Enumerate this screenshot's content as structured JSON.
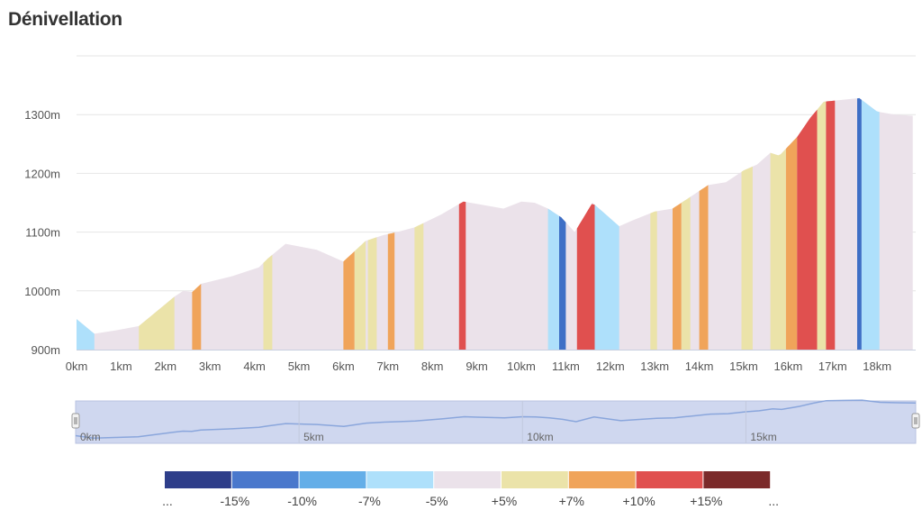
{
  "title": "Dénivellation",
  "chart_data": {
    "type": "area",
    "title": "Dénivellation",
    "x_unit": "km",
    "y_unit": "m",
    "xlim": [
      0,
      18.8
    ],
    "ylim": [
      900,
      1400
    ],
    "y_ticks": [
      "900m",
      "1000m",
      "1100m",
      "1200m",
      "1300m"
    ],
    "x_ticks": [
      "0km",
      "1km",
      "2km",
      "3km",
      "4km",
      "5km",
      "6km",
      "7km",
      "8km",
      "9km",
      "10km",
      "11km",
      "12km",
      "13km",
      "14km",
      "15km",
      "16km",
      "17km",
      "18km"
    ],
    "profile_x": [
      0,
      0.4,
      0.9,
      1.4,
      2.2,
      2.4,
      2.6,
      2.8,
      3.5,
      4.1,
      4.3,
      4.7,
      5.4,
      6.0,
      6.5,
      6.9,
      7.2,
      7.6,
      8.2,
      8.7,
      9.0,
      9.6,
      10.0,
      10.3,
      10.6,
      10.9,
      11.2,
      11.6,
      12.2,
      12.5,
      13.0,
      13.4,
      13.7,
      14.2,
      14.6,
      15.0,
      15.3,
      15.6,
      15.8,
      16.2,
      16.5,
      16.8,
      17.2,
      17.6,
      18.0,
      18.4,
      18.8
    ],
    "profile_y": [
      952,
      927,
      933,
      940,
      990,
      1000,
      998,
      1012,
      1025,
      1040,
      1055,
      1080,
      1070,
      1050,
      1085,
      1095,
      1100,
      1108,
      1130,
      1152,
      1148,
      1140,
      1152,
      1150,
      1140,
      1125,
      1100,
      1150,
      1110,
      1120,
      1135,
      1140,
      1155,
      1180,
      1185,
      1205,
      1215,
      1235,
      1230,
      1262,
      1295,
      1322,
      1325,
      1328,
      1305,
      1300,
      1298
    ],
    "grade_bands": [
      {
        "start": 0.0,
        "end": 0.4,
        "grade": "-7%",
        "color": "#aee0fb"
      },
      {
        "start": 1.4,
        "end": 2.2,
        "grade": "+5%",
        "color": "#ebe3a9"
      },
      {
        "start": 2.6,
        "end": 2.8,
        "grade": "+7%",
        "color": "#f0a45a"
      },
      {
        "start": 4.2,
        "end": 4.4,
        "grade": "+5%",
        "color": "#ebe3a9"
      },
      {
        "start": 6.0,
        "end": 6.25,
        "grade": "+7%",
        "color": "#f0a45a"
      },
      {
        "start": 6.25,
        "end": 6.5,
        "grade": "+5%",
        "color": "#ebe3a9"
      },
      {
        "start": 6.55,
        "end": 6.75,
        "grade": "+5%",
        "color": "#ebe3a9"
      },
      {
        "start": 7.0,
        "end": 7.15,
        "grade": "+7%",
        "color": "#f0a45a"
      },
      {
        "start": 7.6,
        "end": 7.8,
        "grade": "+5%",
        "color": "#ebe3a9"
      },
      {
        "start": 8.6,
        "end": 8.75,
        "grade": "+15%",
        "color": "#e0504f"
      },
      {
        "start": 10.6,
        "end": 10.85,
        "grade": "-7%",
        "color": "#aee0fb"
      },
      {
        "start": 10.85,
        "end": 11.0,
        "grade": "-15%",
        "color": "#3e6fc6"
      },
      {
        "start": 11.25,
        "end": 11.65,
        "grade": "+15%",
        "color": "#e0504f"
      },
      {
        "start": 11.65,
        "end": 12.2,
        "grade": "-7%",
        "color": "#aee0fb"
      },
      {
        "start": 12.9,
        "end": 13.05,
        "grade": "+5%",
        "color": "#ebe3a9"
      },
      {
        "start": 13.4,
        "end": 13.6,
        "grade": "+7%",
        "color": "#f0a45a"
      },
      {
        "start": 13.6,
        "end": 13.8,
        "grade": "+5%",
        "color": "#ebe3a9"
      },
      {
        "start": 14.0,
        "end": 14.2,
        "grade": "+7%",
        "color": "#f0a45a"
      },
      {
        "start": 14.95,
        "end": 15.2,
        "grade": "+5%",
        "color": "#ebe3a9"
      },
      {
        "start": 15.6,
        "end": 15.95,
        "grade": "+5%",
        "color": "#ebe3a9"
      },
      {
        "start": 15.95,
        "end": 16.2,
        "grade": "+7%",
        "color": "#f0a45a"
      },
      {
        "start": 16.2,
        "end": 16.65,
        "grade": "+15%",
        "color": "#e0504f"
      },
      {
        "start": 16.65,
        "end": 16.85,
        "grade": "+5%",
        "color": "#ebe3a9"
      },
      {
        "start": 16.85,
        "end": 17.05,
        "grade": "+15%",
        "color": "#e0504f"
      },
      {
        "start": 17.55,
        "end": 17.65,
        "grade": "-15%",
        "color": "#3e6fc6"
      },
      {
        "start": 17.65,
        "end": 18.05,
        "grade": "-7%",
        "color": "#aee0fb"
      }
    ],
    "base_color": "#ebe2ea",
    "navigator": {
      "labels": [
        "0km",
        "5km",
        "10km",
        "15km"
      ],
      "fill": "#cfd7ef",
      "line_color": "#8aa6dc"
    },
    "legend": {
      "colors": [
        "#2e3e8a",
        "#4a78cc",
        "#64aee8",
        "#aee0fb",
        "#ebe2ea",
        "#ebe3a9",
        "#f0a45a",
        "#e0504f",
        "#7b2a2a"
      ],
      "labels": [
        "...",
        "-15%",
        "-10%",
        "-7%",
        "-5%",
        "+5%",
        "+7%",
        "+10%",
        "+15%",
        "..."
      ]
    }
  }
}
